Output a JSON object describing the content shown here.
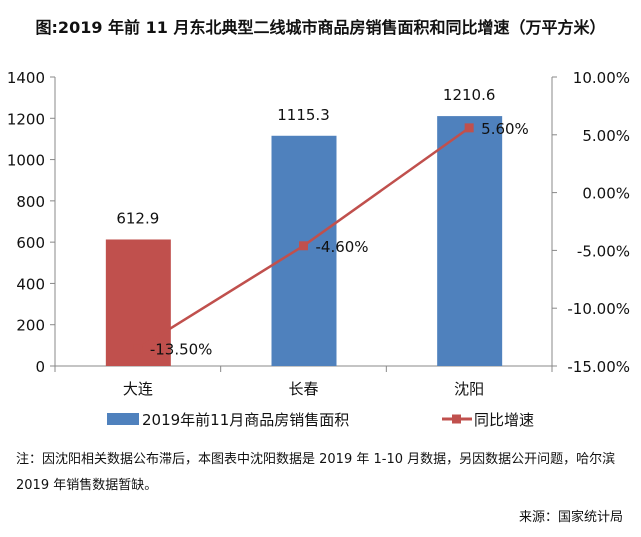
{
  "chart_data": {
    "type": "bar+line",
    "title": "图:2019 年前 11 月东北典型二线城市商品房销售面积和同比增速（万平方米）",
    "categories": [
      "大连",
      "长春",
      "沈阳"
    ],
    "series": [
      {
        "name": "2019年前11月商品房销售面积",
        "type": "bar",
        "axis": "left",
        "values": [
          612.9,
          1115.3,
          1210.6
        ],
        "data_labels": [
          "612.9",
          "1115.3",
          "1210.6"
        ],
        "color": "#4F81BD",
        "highlight_color": "#C0504D",
        "highlight_index": 0
      },
      {
        "name": "同比增速",
        "type": "line",
        "axis": "right",
        "values": [
          -13.5,
          -4.6,
          5.6
        ],
        "data_labels": [
          "-13.50%",
          "-4.60%",
          "5.60%"
        ],
        "color": "#C0504D"
      }
    ],
    "left_axis": {
      "ylim": [
        0,
        1400
      ],
      "ticks": [
        "0",
        "200",
        "400",
        "600",
        "800",
        "1000",
        "1200",
        "1400"
      ]
    },
    "right_axis": {
      "ylim": [
        -15,
        10
      ],
      "ticks": [
        "-15.00%",
        "-10.00%",
        "-5.00%",
        "0.00%",
        "5.00%",
        "10.00%"
      ]
    },
    "grid": false,
    "legend": "bottom"
  },
  "note": "注：因沈阳相关数据公布滞后，本图表中沈阳数据是 2019 年 1-10 月数据，另因数据公开问题，哈尔滨 2019 年销售数据暂缺。",
  "source": "来源：国家统计局"
}
